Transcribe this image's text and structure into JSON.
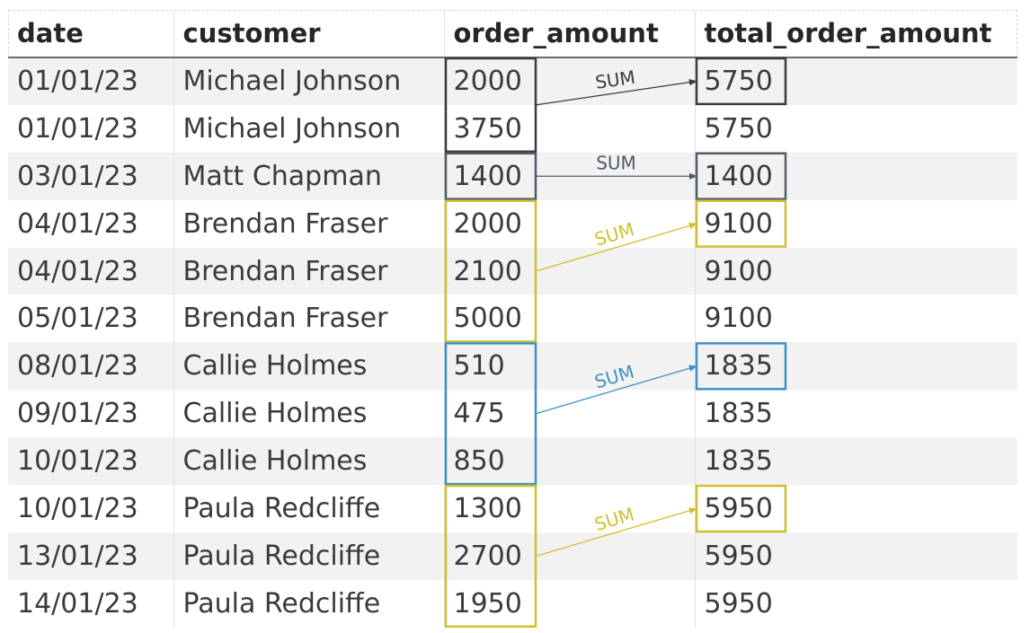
{
  "columns": [
    "date",
    "customer",
    "order_amount",
    "total_order_amount"
  ],
  "rows": [
    [
      "01/01/23",
      "Michael Johnson",
      "2000",
      "5750"
    ],
    [
      "01/01/23",
      "Michael Johnson",
      "3750",
      "5750"
    ],
    [
      "03/01/23",
      "Matt Chapman",
      "1400",
      "1400"
    ],
    [
      "04/01/23",
      "Brendan Fraser",
      "2000",
      "9100"
    ],
    [
      "04/01/23",
      "Brendan Fraser",
      "2100",
      "9100"
    ],
    [
      "05/01/23",
      "Brendan Fraser",
      "5000",
      "9100"
    ],
    [
      "08/01/23",
      "Callie Holmes",
      "510",
      "1835"
    ],
    [
      "09/01/23",
      "Callie Holmes",
      "475",
      "1835"
    ],
    [
      "10/01/23",
      "Callie Holmes",
      "850",
      "1835"
    ],
    [
      "10/01/23",
      "Paula Redcliffe",
      "1300",
      "5950"
    ],
    [
      "13/01/23",
      "Paula Redcliffe",
      "2700",
      "5950"
    ],
    [
      "14/01/23",
      "Paula Redcliffe",
      "1950",
      "5950"
    ]
  ],
  "groups": [
    {
      "customer": "Michael Johnson",
      "first_row": 0,
      "row_count": 2,
      "label": "SUM",
      "color": "#3b3b3b"
    },
    {
      "customer": "Matt Chapman",
      "first_row": 2,
      "row_count": 1,
      "label": "SUM",
      "color": "#4f5a6b"
    },
    {
      "customer": "Brendan Fraser",
      "first_row": 3,
      "row_count": 3,
      "label": "SUM",
      "color": "#d2bf2c"
    },
    {
      "customer": "Callie Holmes",
      "first_row": 6,
      "row_count": 3,
      "label": "SUM",
      "color": "#3a93c4"
    },
    {
      "customer": "Paula Redcliffe",
      "first_row": 9,
      "row_count": 3,
      "label": "SUM",
      "color": "#d2bf2c"
    }
  ]
}
